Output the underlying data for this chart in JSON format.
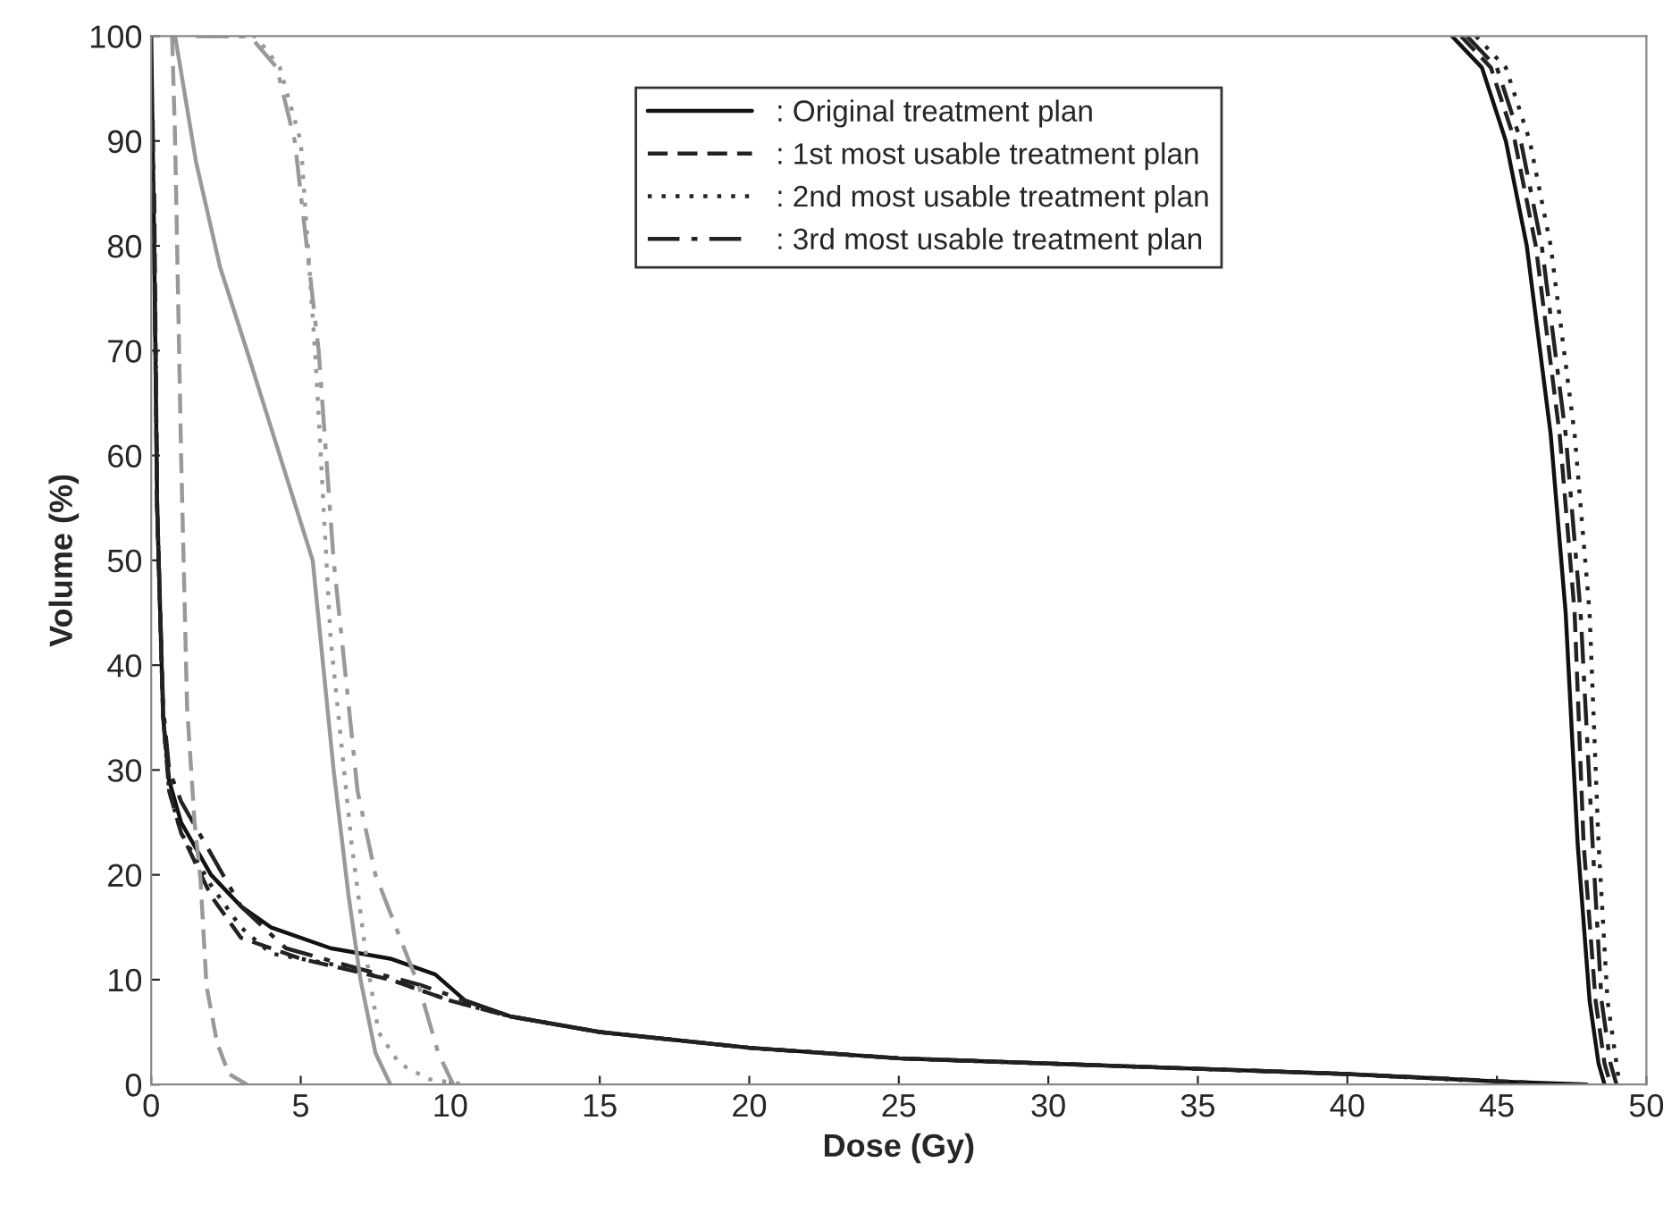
{
  "chart_data": {
    "type": "line",
    "xlabel": "Dose (Gy)",
    "ylabel": "Volume (%)",
    "xlim": [
      0,
      50
    ],
    "ylim": [
      0,
      100
    ],
    "xticks": [
      0,
      5,
      10,
      15,
      20,
      25,
      30,
      35,
      40,
      45,
      50
    ],
    "yticks": [
      0,
      10,
      20,
      30,
      40,
      50,
      60,
      70,
      80,
      90,
      100
    ],
    "grid": false,
    "legend": "top",
    "marker": "none",
    "series": [
      {
        "name": ": Original treatment plan",
        "color": "#111111",
        "line_style": "solid",
        "x": [
          43.5,
          44.5,
          45.3,
          46,
          46.8,
          47.3,
          47.7,
          48.1,
          48.4,
          48.6
        ],
        "values": [
          100,
          97,
          90,
          80,
          62,
          45,
          23,
          8,
          2,
          0
        ]
      },
      {
        "name": ": 1st most usable treatment plan",
        "color": "#222222",
        "line_style": "dashed",
        "x": [
          43.8,
          44.8,
          45.6,
          46.3,
          47.1,
          47.6,
          47.9,
          48.3,
          48.6,
          48.8
        ],
        "values": [
          100,
          97,
          90,
          80,
          62,
          45,
          23,
          8,
          2,
          0
        ]
      },
      {
        "name": ": 2nd most usable treatment plan",
        "color": "#222222",
        "line_style": "dotted",
        "x": [
          44.3,
          45.3,
          46.1,
          46.8,
          47.6,
          48.1,
          48.4,
          48.7,
          49,
          49.1
        ],
        "values": [
          100,
          97,
          90,
          80,
          62,
          45,
          23,
          8,
          2,
          0
        ]
      },
      {
        "name": ": 3rd most usable treatment plan",
        "color": "#222222",
        "line_style": "dashdot",
        "x": [
          44,
          45,
          45.8,
          46.5,
          47.3,
          47.8,
          48.2,
          48.5,
          48.8,
          49
        ],
        "values": [
          100,
          97,
          90,
          80,
          62,
          45,
          23,
          8,
          2,
          0
        ]
      },
      {
        "color": "#111111",
        "line_style": "solid",
        "x": [
          0,
          0.1,
          0.2,
          0.4,
          0.6,
          1,
          2,
          3,
          4,
          6,
          8,
          9.5,
          10.5,
          12,
          15,
          20,
          25,
          30,
          35,
          40,
          45,
          48
        ],
        "values": [
          100,
          80,
          55,
          35,
          29,
          25,
          20,
          17,
          15,
          13,
          12,
          10.5,
          8,
          6.5,
          5,
          3.5,
          2.5,
          2,
          1.5,
          1,
          0.3,
          0
        ]
      },
      {
        "color": "#222222",
        "line_style": "dashed",
        "x": [
          0.1,
          0.2,
          0.4,
          0.6,
          1,
          2,
          3,
          5,
          8,
          10,
          12,
          15,
          20,
          25,
          30,
          35,
          40,
          46
        ],
        "values": [
          85,
          55,
          35,
          28,
          24,
          18,
          14,
          12,
          10,
          8,
          6.5,
          5,
          3.5,
          2.5,
          2,
          1.5,
          1,
          0.2
        ]
      },
      {
        "color": "#222222",
        "line_style": "dotted",
        "x": [
          0.15,
          0.2,
          0.4,
          0.6,
          1,
          2,
          3,
          4,
          6,
          8,
          10,
          12,
          15,
          20,
          25,
          30,
          35,
          40,
          44
        ],
        "values": [
          70,
          55,
          35,
          28,
          24,
          19,
          15,
          12.5,
          11.5,
          10,
          8,
          6.5,
          5,
          3.5,
          2.5,
          2,
          1.5,
          1,
          0.4
        ]
      },
      {
        "color": "#222222",
        "line_style": "dashdot",
        "x": [
          0.05,
          0.1,
          0.2,
          0.4,
          0.6,
          1,
          2,
          3,
          4.5,
          7,
          9,
          10.5,
          12,
          15,
          20,
          25,
          30,
          35,
          40,
          42
        ],
        "values": [
          92,
          80,
          55,
          36,
          30,
          27,
          22,
          17,
          13,
          11,
          9.5,
          8,
          6.5,
          5,
          3.5,
          2.5,
          2,
          1.5,
          1,
          0.7
        ]
      },
      {
        "color": "#999999",
        "line_style": "solid",
        "x": [
          0.8,
          1.5,
          2.3,
          3.2,
          4.3,
          5.4,
          6.1,
          6.6,
          7,
          7.5,
          8
        ],
        "values": [
          100,
          88,
          78,
          70,
          60,
          50,
          30,
          18,
          10,
          3,
          0
        ]
      },
      {
        "color": "#999999",
        "line_style": "dashed",
        "x": [
          0.7,
          0.8,
          1,
          1.2,
          1.45,
          1.65,
          1.85,
          2.2,
          2.6,
          3.2
        ],
        "values": [
          100,
          90,
          60,
          36,
          25,
          19.5,
          9.4,
          4,
          1,
          0
        ]
      },
      {
        "color": "#999999",
        "line_style": "dotted",
        "x": [
          2,
          3.5,
          4.3,
          5,
          5.5,
          6,
          6.7,
          7.2,
          7.6,
          8.3,
          9.3,
          10.5
        ],
        "values": [
          100,
          100,
          97,
          90,
          69,
          42.5,
          23,
          12,
          5,
          2,
          0.5,
          0
        ]
      },
      {
        "color": "#999999",
        "line_style": "dashdot",
        "x": [
          1.5,
          3.3,
          4.2,
          4.8,
          5.6,
          6.1,
          6.9,
          7.5,
          8.95,
          9.6,
          10.1
        ],
        "values": [
          100,
          100,
          97,
          90,
          70,
          50,
          28,
          20,
          9.4,
          3,
          0
        ]
      }
    ]
  }
}
